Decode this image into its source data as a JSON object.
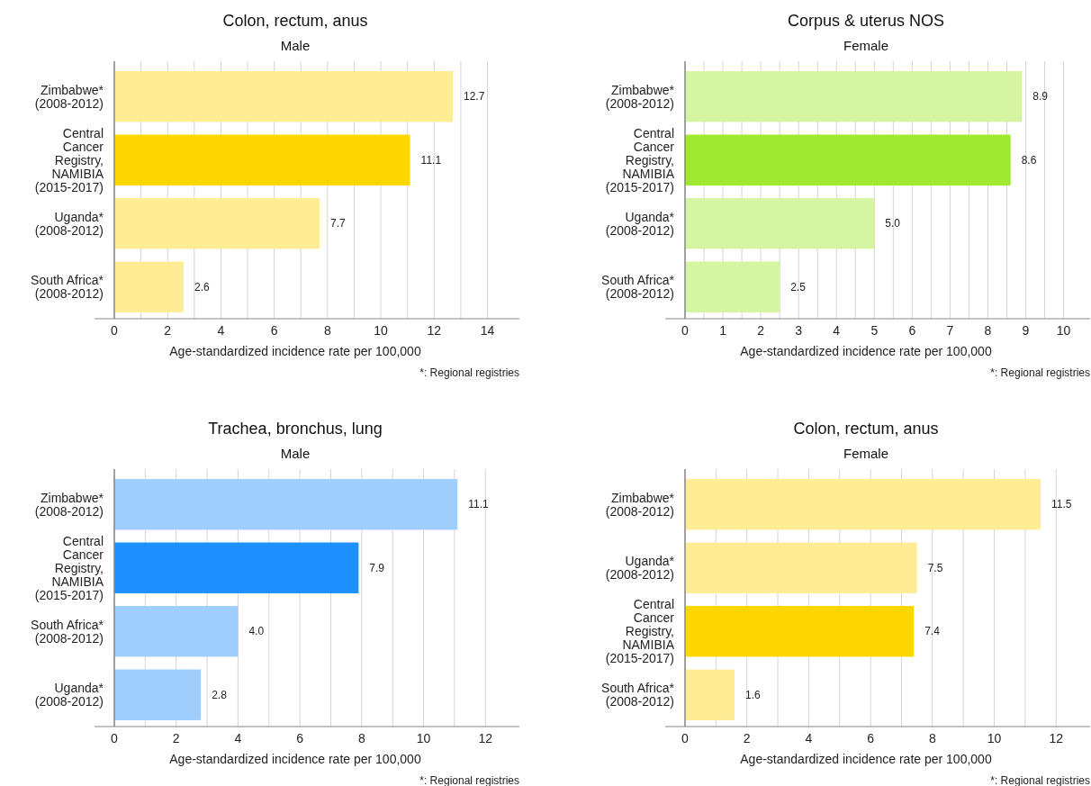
{
  "chart_data": [
    {
      "type": "bar",
      "orientation": "horizontal",
      "title": "Colon, rectum, anus",
      "subtitle": "Male",
      "xlabel": "Age-standardized incidence rate per 100,000",
      "annotations": [
        "*: Regional registries"
      ],
      "categories": [
        "Zimbabwe*\n(2008-2012)",
        "Central\nCancer\nRegistry,\nNAMIBIA\n(2015-2017)",
        "Uganda*\n(2008-2012)",
        "South Africa*\n(2008-2012)"
      ],
      "values": [
        12.7,
        11.1,
        7.7,
        2.6
      ],
      "value_labels": [
        "12.7",
        "11.1",
        "7.7",
        "2.6"
      ],
      "colors": [
        "#ffec94",
        "#ffd700",
        "#ffec94",
        "#ffec94"
      ],
      "grid": "x",
      "xlim": [
        0,
        15.2
      ],
      "xticks": [
        0,
        {
          "value": 1,
          "label": null
        },
        2,
        {
          "value": 3,
          "label": null
        },
        4,
        {
          "value": 5,
          "label": null
        },
        6,
        {
          "value": 7,
          "label": null
        },
        8,
        {
          "value": 9,
          "label": null
        },
        10,
        {
          "value": 11,
          "label": null
        },
        12,
        {
          "value": 13,
          "label": null
        },
        14
      ]
    },
    {
      "type": "bar",
      "orientation": "horizontal",
      "title": "Corpus & uterus NOS",
      "subtitle": "Female",
      "xlabel": "Age-standardized incidence rate per 100,000",
      "annotations": [
        "*: Regional registries"
      ],
      "categories": [
        "Zimbabwe*\n(2008-2012)",
        "Central\nCancer\nRegistry,\nNAMIBIA\n(2015-2017)",
        "Uganda*\n(2008-2012)",
        "South Africa*\n(2008-2012)"
      ],
      "values": [
        8.9,
        8.6,
        5.0,
        2.5
      ],
      "value_labels": [
        "8.9",
        "8.6",
        "5.0",
        "2.5"
      ],
      "colors": [
        "#d6f5a3",
        "#a1e830",
        "#d6f5a3",
        "#d6f5a3"
      ],
      "grid": "x",
      "xlim": [
        0,
        10.7
      ],
      "xticks": [
        0,
        {
          "value": 0.5,
          "label": null
        },
        1,
        {
          "value": 1.5,
          "label": null
        },
        2,
        {
          "value": 2.5,
          "label": null
        },
        3,
        {
          "value": 3.5,
          "label": null
        },
        4,
        {
          "value": 4.5,
          "label": null
        },
        5,
        {
          "value": 5.5,
          "label": null
        },
        6,
        {
          "value": 6.5,
          "label": null
        },
        7,
        {
          "value": 7.5,
          "label": null
        },
        8,
        {
          "value": 8.5,
          "label": null
        },
        9,
        {
          "value": 9.5,
          "label": null
        },
        10
      ]
    },
    {
      "type": "bar",
      "orientation": "horizontal",
      "title": "Trachea, bronchus, lung",
      "subtitle": "Male",
      "xlabel": "Age-standardized incidence rate per 100,000",
      "annotations": [
        "*: Regional registries"
      ],
      "categories": [
        "Zimbabwe*\n(2008-2012)",
        "Central\nCancer\nRegistry,\nNAMIBIA\n(2015-2017)",
        "South Africa*\n(2008-2012)",
        "Uganda*\n(2008-2012)"
      ],
      "values": [
        11.1,
        7.9,
        4.0,
        2.8
      ],
      "value_labels": [
        "11.1",
        "7.9",
        "4.0",
        "2.8"
      ],
      "colors": [
        "#a0cfff",
        "#1e90ff",
        "#a0cfff",
        "#a0cfff"
      ],
      "grid": "x",
      "xlim": [
        0,
        13.1
      ],
      "xticks": [
        0,
        {
          "value": 1,
          "label": null
        },
        2,
        {
          "value": 3,
          "label": null
        },
        4,
        {
          "value": 5,
          "label": null
        },
        6,
        {
          "value": 7,
          "label": null
        },
        8,
        {
          "value": 9,
          "label": null
        },
        10,
        {
          "value": 11,
          "label": null
        },
        12
      ]
    },
    {
      "type": "bar",
      "orientation": "horizontal",
      "title": "Colon, rectum, anus",
      "subtitle": "Female",
      "xlabel": "Age-standardized incidence rate per 100,000",
      "annotations": [
        "*: Regional registries"
      ],
      "categories": [
        "Zimbabwe*\n(2008-2012)",
        "Uganda*\n(2008-2012)",
        "Central\nCancer\nRegistry,\nNAMIBIA\n(2015-2017)",
        "South Africa*\n(2008-2012)"
      ],
      "values": [
        11.5,
        7.5,
        7.4,
        1.6
      ],
      "value_labels": [
        "11.5",
        "7.5",
        "7.4",
        "1.6"
      ],
      "colors": [
        "#ffec94",
        "#ffec94",
        "#ffd700",
        "#ffec94"
      ],
      "grid": "x",
      "xlim": [
        0,
        13.1
      ],
      "xticks": [
        0,
        {
          "value": 1,
          "label": null
        },
        2,
        {
          "value": 3,
          "label": null
        },
        4,
        {
          "value": 5,
          "label": null
        },
        6,
        {
          "value": 7,
          "label": null
        },
        8,
        {
          "value": 9,
          "label": null
        },
        10,
        {
          "value": 11,
          "label": null
        },
        12
      ]
    }
  ]
}
